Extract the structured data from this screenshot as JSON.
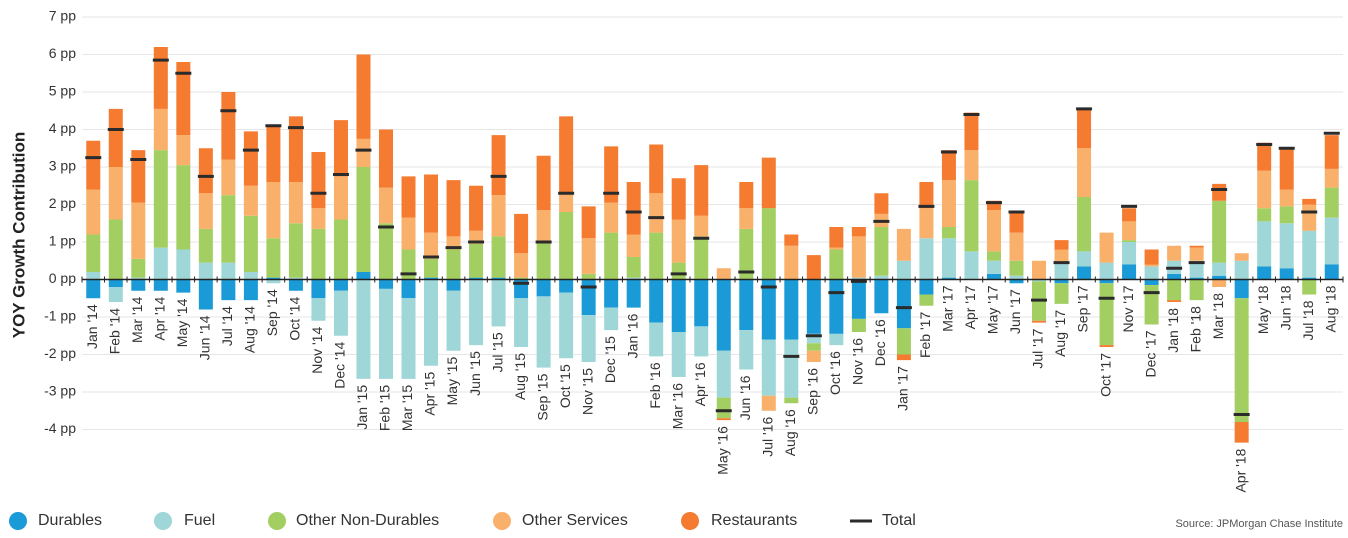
{
  "chart_data": {
    "type": "stacked_bar",
    "y_label": "YOY Growth Contribution",
    "source": "Source:  JPMorgan Chase Institute",
    "categories": [
      "Jan '14",
      "Feb '14",
      "Mar '14",
      "Apr '14",
      "May '14",
      "Jun '14",
      "Jul '14",
      "Aug '14",
      "Sep '14",
      "Oct '14",
      "Nov '14",
      "Dec '14",
      "Jan '15",
      "Feb '15",
      "Mar '15",
      "Apr '15",
      "May '15",
      "Jun '15",
      "Jul '15",
      "Aug '15",
      "Sep '15",
      "Oct '15",
      "Nov '15",
      "Dec '15",
      "Jan '16",
      "Feb '16",
      "Mar '16",
      "Apr '16",
      "May '16",
      "Jun '16",
      "Jul '16",
      "Aug '16",
      "Sep '16",
      "Oct '16",
      "Nov '16",
      "Dec '16",
      "Jan '17",
      "Feb '17",
      "Mar '17",
      "Apr '17",
      "May '17",
      "Jun '17",
      "Jul '17",
      "Aug '17",
      "Sep '17",
      "Oct '17",
      "Nov '17",
      "Dec '17",
      "Jan '18",
      "Feb '18",
      "Mar '18",
      "Apr '18",
      "May '18",
      "Jun '18",
      "Jul '18",
      "Aug '18"
    ],
    "series": [
      {
        "name": "Durables",
        "color": "#1a9ad6",
        "values": [
          -0.5,
          -0.2,
          -0.3,
          -0.3,
          -0.35,
          -0.8,
          -0.55,
          -0.55,
          0.05,
          -0.3,
          -0.5,
          -0.3,
          0.2,
          -0.25,
          -0.5,
          0.05,
          -0.3,
          0.05,
          0.05,
          -0.5,
          -0.45,
          -0.35,
          -0.95,
          -0.75,
          -0.75,
          -1.15,
          -1.4,
          -1.25,
          -1.9,
          -1.35,
          -1.6,
          -1.6,
          -1.45,
          -1.45,
          -1.05,
          -0.9,
          -1.3,
          -0.4,
          0.05,
          0,
          0.15,
          -0.1,
          0,
          -0.1,
          0.35,
          -0.1,
          0.4,
          -0.15,
          0.15,
          0.05,
          0.1,
          -0.5,
          0.35,
          0.3,
          0.05,
          0.4
        ]
      },
      {
        "name": "Fuel",
        "color": "#9fd6d8",
        "values": [
          0.2,
          -0.4,
          0.05,
          0.85,
          0.8,
          0.45,
          0.45,
          0.2,
          -0.1,
          0.05,
          -0.6,
          -1.2,
          -2.65,
          -2.4,
          -2.15,
          -2.3,
          -1.6,
          -1.75,
          -1.25,
          -1.3,
          -1.9,
          -1.75,
          -1.25,
          -0.6,
          0.05,
          -0.9,
          -1.2,
          -0.8,
          -1.25,
          -1.05,
          -1.5,
          -1.55,
          -0.25,
          -0.3,
          0.05,
          0.1,
          0.5,
          1.1,
          1.05,
          0.75,
          0.35,
          0.1,
          -0.05,
          0.45,
          0.4,
          0.45,
          0.6,
          0.35,
          0.35,
          0.45,
          0.35,
          0.5,
          1.2,
          1.2,
          1.25,
          1.25
        ]
      },
      {
        "name": "Other Non-Durables",
        "color": "#a3cf62",
        "values": [
          1.0,
          1.6,
          0.5,
          2.6,
          2.25,
          0.9,
          1.8,
          1.5,
          1.05,
          1.45,
          1.35,
          1.6,
          2.8,
          1.5,
          0.8,
          0.5,
          0.8,
          0.9,
          1.1,
          0.05,
          1.0,
          1.8,
          0.15,
          1.25,
          0.55,
          1.25,
          0.45,
          1.15,
          -0.55,
          1.35,
          1.9,
          -0.15,
          -0.2,
          0.8,
          -0.35,
          1.3,
          -0.7,
          -0.3,
          0.3,
          1.9,
          0.25,
          0.4,
          -1.05,
          -0.55,
          1.45,
          -1.65,
          0.05,
          -1.05,
          -0.55,
          -0.55,
          1.65,
          -3.3,
          0.35,
          0.45,
          -0.4,
          0.8
        ]
      },
      {
        "name": "Other Services",
        "color": "#f9b06b",
        "values": [
          1.2,
          1.4,
          1.5,
          1.1,
          0.8,
          0.95,
          0.95,
          0.8,
          1.5,
          1.1,
          0.55,
          1.15,
          0.75,
          0.95,
          0.85,
          0.7,
          0.35,
          0.35,
          1.1,
          0.65,
          0.85,
          0.5,
          0.95,
          0.8,
          0.6,
          1.05,
          1.15,
          0.55,
          0.3,
          0.55,
          -0.4,
          0.9,
          -0.3,
          0.05,
          1.1,
          0.35,
          0.85,
          0.8,
          1.25,
          0.8,
          1.1,
          0.75,
          0.5,
          0.35,
          1.3,
          0.8,
          0.5,
          0.05,
          0.4,
          0.35,
          -0.2,
          0.2,
          1.0,
          0.45,
          0.7,
          0.5
        ]
      },
      {
        "name": "Restaurants",
        "color": "#f47b30",
        "values": [
          1.3,
          1.55,
          1.4,
          1.65,
          1.95,
          1.2,
          1.8,
          1.45,
          1.5,
          1.75,
          1.5,
          1.5,
          2.25,
          1.55,
          1.1,
          1.55,
          1.5,
          1.2,
          1.6,
          1.05,
          1.45,
          2.05,
          0.85,
          1.5,
          1.4,
          1.3,
          1.1,
          1.35,
          -0.05,
          0.7,
          1.35,
          0.3,
          0.65,
          0.55,
          0.25,
          0.55,
          -0.15,
          0.7,
          0.8,
          1.0,
          0.25,
          0.55,
          -0.05,
          0.25,
          1.05,
          -0.05,
          0.35,
          0.4,
          -0.05,
          0.05,
          0.45,
          -0.55,
          0.75,
          1.1,
          0.15,
          0.9
        ]
      }
    ],
    "total": {
      "name": "Total",
      "color": "#2b2b2b",
      "values": [
        3.25,
        4.0,
        3.2,
        5.85,
        5.5,
        2.75,
        4.5,
        3.45,
        4.1,
        4.05,
        2.3,
        2.8,
        3.45,
        1.4,
        0.15,
        0.6,
        0.85,
        1.0,
        2.75,
        -0.1,
        1.0,
        2.3,
        -0.2,
        2.3,
        1.8,
        1.65,
        0.15,
        1.1,
        -3.5,
        0.2,
        -0.2,
        -2.05,
        -1.5,
        -0.35,
        -0.05,
        1.55,
        -0.75,
        1.95,
        3.4,
        4.4,
        2.05,
        1.8,
        -0.55,
        0.45,
        4.55,
        -0.5,
        1.95,
        -0.35,
        0.3,
        0.45,
        2.4,
        -3.6,
        3.6,
        3.5,
        1.8,
        3.9
      ]
    },
    "ylim": [
      -4.5,
      7
    ],
    "yticks": [
      {
        "value": 7,
        "label": "7 pp"
      },
      {
        "value": 6,
        "label": "6 pp"
      },
      {
        "value": 5,
        "label": "5 pp"
      },
      {
        "value": 4,
        "label": "4 pp"
      },
      {
        "value": 3,
        "label": "3 pp"
      },
      {
        "value": 2,
        "label": "2 pp"
      },
      {
        "value": 1,
        "label": "1 pp"
      },
      {
        "value": 0,
        "label": "0 pp"
      },
      {
        "value": -1,
        "label": "-1 pp"
      },
      {
        "value": -2,
        "label": "-2 pp"
      },
      {
        "value": -3,
        "label": "-3 pp"
      },
      {
        "value": -4,
        "label": "-4 pp"
      }
    ],
    "grid": true
  }
}
